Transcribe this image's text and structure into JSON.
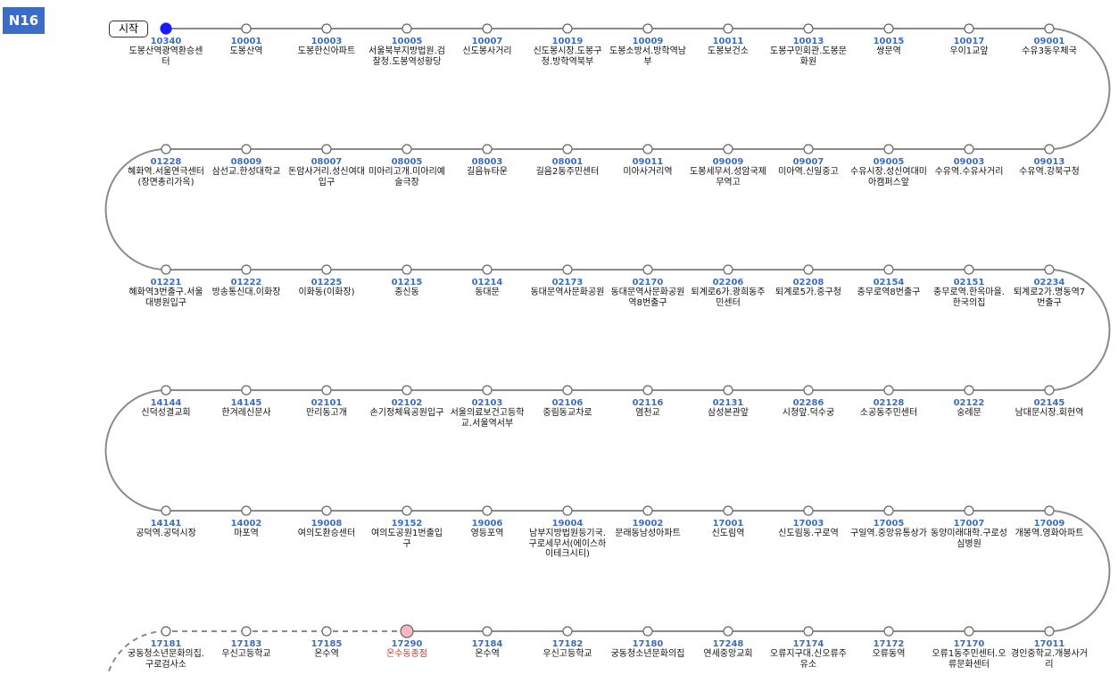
{
  "badge": "N16",
  "start_label": "시작",
  "stops": [
    {
      "code": "10340",
      "name": "도봉산역광역환승센터",
      "marker_fill": "#1a1aff"
    },
    {
      "code": "10001",
      "name": "도봉산역"
    },
    {
      "code": "10003",
      "name": "도봉한신아파트"
    },
    {
      "code": "10005",
      "name": "서울북부지방법원.검찰청.도봉역성황당"
    },
    {
      "code": "10007",
      "name": "신도봉사거리"
    },
    {
      "code": "10019",
      "name": "신도봉시장.도봉구청.방학역북부"
    },
    {
      "code": "10009",
      "name": "도봉소방서.방학역남부"
    },
    {
      "code": "10011",
      "name": "도봉보건소"
    },
    {
      "code": "10013",
      "name": "도봉구민회관.도봉문화원"
    },
    {
      "code": "10015",
      "name": "쌍문역"
    },
    {
      "code": "10017",
      "name": "우이1교앞"
    },
    {
      "code": "09001",
      "name": "수유3동우체국"
    },
    {
      "code": "09013",
      "name": "수유역.강북구청"
    },
    {
      "code": "09003",
      "name": "수유역.수유사거리"
    },
    {
      "code": "09005",
      "name": "수유시장.성신여대미아캠퍼스앞"
    },
    {
      "code": "09007",
      "name": "미아역.신일중고"
    },
    {
      "code": "09009",
      "name": "도봉세무서.성암국제무역고"
    },
    {
      "code": "09011",
      "name": "미아사거리역"
    },
    {
      "code": "08001",
      "name": "길음2동주민센터"
    },
    {
      "code": "08003",
      "name": "길음뉴타운"
    },
    {
      "code": "08005",
      "name": "미아리고개.미아리예술극장"
    },
    {
      "code": "08007",
      "name": "돈암사거리.성신여대입구"
    },
    {
      "code": "08009",
      "name": "삼선교.한성대학교"
    },
    {
      "code": "01228",
      "name": "혜화역.서울연극센터(장면총리가옥)"
    },
    {
      "code": "01221",
      "name": "혜화역3번출구.서울대병원입구"
    },
    {
      "code": "01222",
      "name": "방송통신대.이화장"
    },
    {
      "code": "01225",
      "name": "이화동(이화장)"
    },
    {
      "code": "01215",
      "name": "충신동"
    },
    {
      "code": "01214",
      "name": "동대문"
    },
    {
      "code": "02173",
      "name": "동대문역사문화공원"
    },
    {
      "code": "02170",
      "name": "동대문역사문화공원역8번출구"
    },
    {
      "code": "02206",
      "name": "퇴계로6가.광희동주민센터"
    },
    {
      "code": "02208",
      "name": "퇴계로5가.중구청"
    },
    {
      "code": "02154",
      "name": "충무로역8번출구"
    },
    {
      "code": "02151",
      "name": "충무로역.한옥마을.한국의집"
    },
    {
      "code": "02234",
      "name": "퇴계로2가.명동역7번출구"
    },
    {
      "code": "02145",
      "name": "남대문시장.회현역"
    },
    {
      "code": "02122",
      "name": "숭례문"
    },
    {
      "code": "02128",
      "name": "소공동주민센터"
    },
    {
      "code": "02286",
      "name": "시청앞.덕수궁"
    },
    {
      "code": "02131",
      "name": "삼성본관앞"
    },
    {
      "code": "02116",
      "name": "염천교"
    },
    {
      "code": "02106",
      "name": "중림동교차로"
    },
    {
      "code": "02103",
      "name": "서울의료보건고등학교.서울역서부"
    },
    {
      "code": "02102",
      "name": "손기정체육공원입구"
    },
    {
      "code": "02101",
      "name": "만리동고개"
    },
    {
      "code": "14145",
      "name": "한겨레신문사"
    },
    {
      "code": "14144",
      "name": "신덕성결교회"
    },
    {
      "code": "14141",
      "name": "공덕역.공덕시장"
    },
    {
      "code": "14002",
      "name": "마포역"
    },
    {
      "code": "19008",
      "name": "여의도환승센터"
    },
    {
      "code": "19152",
      "name": "여의도공원1번출입구"
    },
    {
      "code": "19006",
      "name": "영등포역"
    },
    {
      "code": "19004",
      "name": "남부지방법원등기국.구로세무서(에이스하이테크시티)"
    },
    {
      "code": "19002",
      "name": "문래동남성아파트"
    },
    {
      "code": "17001",
      "name": "신도림역"
    },
    {
      "code": "17003",
      "name": "신도림동.구로역"
    },
    {
      "code": "17005",
      "name": "구일역.중앙유통상가"
    },
    {
      "code": "17007",
      "name": "동양미래대학.구로성심병원"
    },
    {
      "code": "17009",
      "name": "개봉역.영화아파트"
    },
    {
      "code": "17011",
      "name": "경인중학교.개봉사거리"
    },
    {
      "code": "17170",
      "name": "오류1동주민센터.오류문화센터"
    },
    {
      "code": "17172",
      "name": "오류동역"
    },
    {
      "code": "17174",
      "name": "오류지구대.신오류주유소"
    },
    {
      "code": "17248",
      "name": "연세중앙교회"
    },
    {
      "code": "17180",
      "name": "궁동청소년문화의집"
    },
    {
      "code": "17182",
      "name": "우신고등학교"
    },
    {
      "code": "17184",
      "name": "온수역"
    },
    {
      "code": "17290",
      "name": "온수동종점",
      "marker_fill": "#f6b9c3",
      "name_color": "#e0302a"
    },
    {
      "code": "17185",
      "name": "온수역",
      "line_style": "dashed"
    },
    {
      "code": "17183",
      "name": "우신고등학교",
      "line_style": "dashed"
    },
    {
      "code": "17181",
      "name": "궁동청소년문화의집.구로검사소",
      "line_style": "dashed"
    }
  ]
}
